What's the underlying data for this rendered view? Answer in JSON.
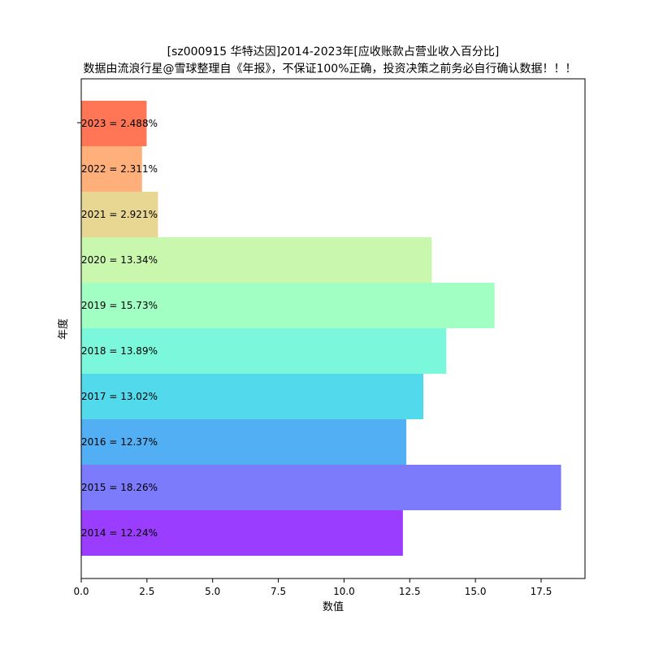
{
  "chart_data": {
    "type": "bar",
    "orientation": "horizontal",
    "title": "[sz000915 华特达因]2014-2023年[应收账款占营业收入百分比]",
    "subtitle": "数据由流浪行星@雪球整理自《年报》，不保证100%正确，投资决策之前务必自行确认数据！！！",
    "xlabel": "数值",
    "ylabel": "年度",
    "xlim": [
      0,
      19.17
    ],
    "xticks": [
      "0.0",
      "2.5",
      "5.0",
      "7.5",
      "10.0",
      "12.5",
      "15.0",
      "17.5"
    ],
    "categories": [
      "2014",
      "2015",
      "2016",
      "2017",
      "2018",
      "2019",
      "2020",
      "2021",
      "2022",
      "2023"
    ],
    "values": [
      12.24,
      18.26,
      12.37,
      13.02,
      13.89,
      15.73,
      13.34,
      2.921,
      2.311,
      2.488
    ],
    "bar_labels": [
      "2014 = 12.24%",
      "2015 = 18.26%",
      "2016 = 12.37%",
      "2017 = 13.02%",
      "2018 = 13.89%",
      "2019 = 15.73%",
      "2020 = 13.34%",
      "2021 = 2.921%",
      "2022 = 2.311%",
      "2023 = 2.488%"
    ],
    "colors": [
      "#9b3dff",
      "#7b7bfb",
      "#53aff4",
      "#52daec",
      "#7bf7dc",
      "#a2ffc4",
      "#c9f7ae",
      "#e8d693",
      "#ffaf7a",
      "#ff7657"
    ],
    "grid": false
  }
}
